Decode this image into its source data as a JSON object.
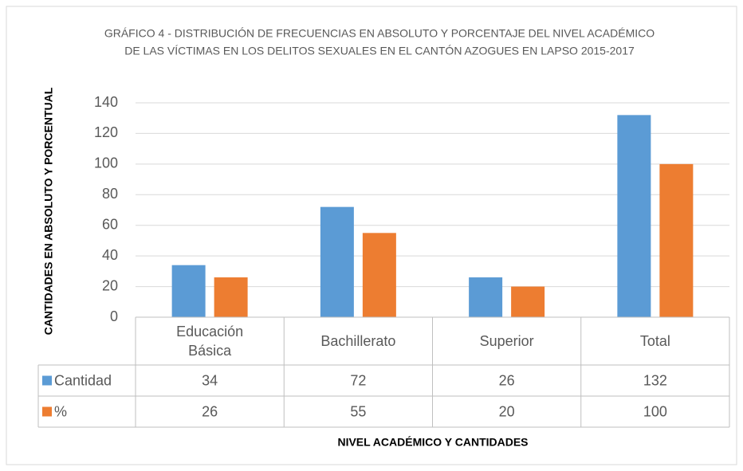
{
  "chart_data": {
    "type": "bar",
    "title": [
      "GRÁFICO 4 - DISTRIBUCIÓN DE FRECUENCIAS EN ABSOLUTO Y PORCENTAJE DEL NIVEL ACADÉMICO",
      "DE LAS VÍCTIMAS EN LOS DELITOS SEXUALES EN EL CANTÓN AZOGUES EN LAPSO 2015-2017"
    ],
    "y_label": "CANTIDADES EN ABSOLUTO Y PORCENTUAL",
    "x_label": "NIVEL ACADÉMICO Y CANTIDADES",
    "categories": [
      "Educación Básica",
      "Bachillerato",
      "Superior",
      "Total"
    ],
    "series": [
      {
        "name": "Cantidad",
        "color": "#5b9bd5",
        "values": [
          34,
          72,
          26,
          132
        ]
      },
      {
        "name": "%",
        "color": "#ed7d31",
        "values": [
          26,
          55,
          20,
          100
        ]
      }
    ],
    "ylim": [
      0,
      140
    ],
    "yticks": [
      0,
      20,
      40,
      60,
      80,
      100,
      120,
      140
    ],
    "grid": true,
    "data_table": true
  }
}
